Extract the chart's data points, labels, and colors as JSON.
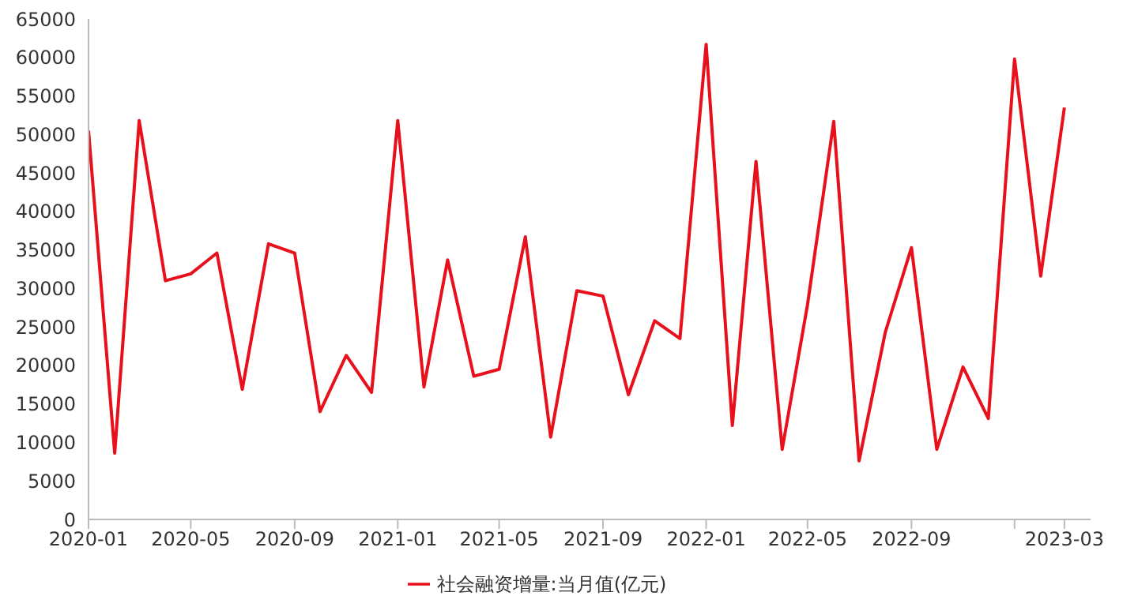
{
  "chart_data": {
    "type": "line",
    "x": [
      "2020-01",
      "2020-02",
      "2020-03",
      "2020-04",
      "2020-05",
      "2020-06",
      "2020-07",
      "2020-08",
      "2020-09",
      "2020-10",
      "2020-11",
      "2020-12",
      "2021-01",
      "2021-02",
      "2021-03",
      "2021-04",
      "2021-05",
      "2021-06",
      "2021-07",
      "2021-08",
      "2021-09",
      "2021-10",
      "2021-11",
      "2021-12",
      "2022-01",
      "2022-02",
      "2022-03",
      "2022-04",
      "2022-05",
      "2022-06",
      "2022-07",
      "2022-08",
      "2022-09",
      "2022-10",
      "2022-11",
      "2022-12",
      "2023-01",
      "2023-02",
      "2023-03"
    ],
    "series": [
      {
        "name": "社会融资增量:当月值(亿元)",
        "color": "#e8101a",
        "values": [
          50500,
          8600,
          51800,
          31000,
          31900,
          34600,
          16900,
          35800,
          34600,
          14000,
          21300,
          16500,
          51800,
          17200,
          33700,
          18600,
          19500,
          36700,
          10700,
          29700,
          29000,
          16200,
          25800,
          23500,
          61700,
          12200,
          46500,
          9100,
          27900,
          51700,
          7600,
          24300,
          35300,
          9100,
          19800,
          13100,
          59800,
          31600,
          53500
        ]
      }
    ],
    "xlim": [
      "2020-01",
      "2023-04"
    ],
    "xticks": [
      {
        "value": "2020-01",
        "label": "2020-01"
      },
      {
        "value": "2020-05",
        "label": "2020-05"
      },
      {
        "value": "2020-09",
        "label": "2020-09"
      },
      {
        "value": "2021-01",
        "label": "2021-01"
      },
      {
        "value": "2021-05",
        "label": "2021-05"
      },
      {
        "value": "2021-09",
        "label": "2021-09"
      },
      {
        "value": "2022-01",
        "label": "2022-01"
      },
      {
        "value": "2022-05",
        "label": "2022-05"
      },
      {
        "value": "2022-09",
        "label": "2022-09"
      },
      {
        "value": "2023-01",
        "label": null
      },
      {
        "value": "2023-03",
        "label": "2023-03"
      }
    ],
    "ylim": [
      0,
      65000
    ],
    "yticks": [
      0,
      5000,
      10000,
      15000,
      20000,
      25000,
      30000,
      35000,
      40000,
      45000,
      50000,
      55000,
      60000,
      65000
    ],
    "grid": false,
    "legend": "bottom",
    "marker": "none",
    "line_style": "solid"
  }
}
